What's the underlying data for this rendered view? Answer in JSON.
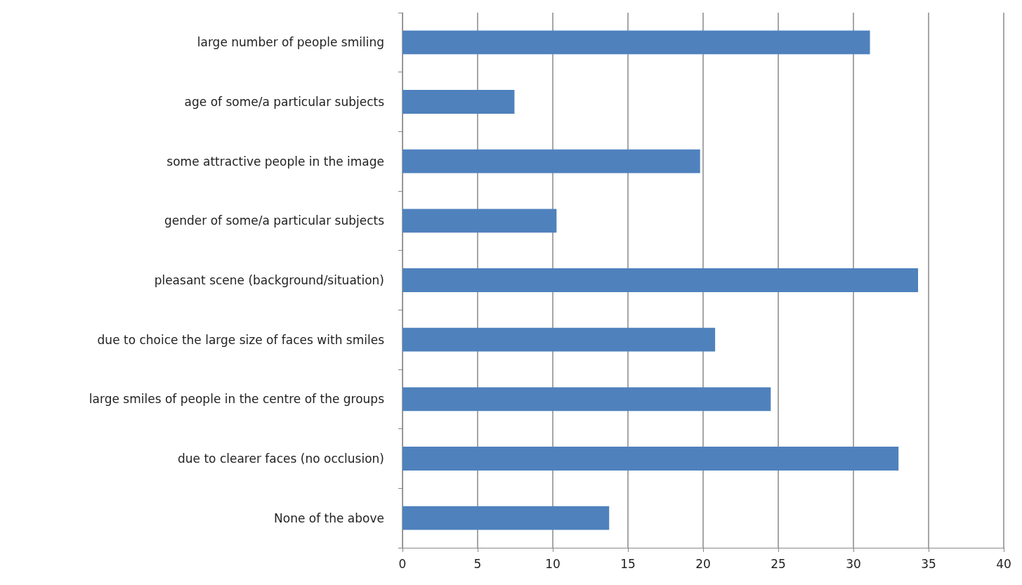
{
  "chart_data": {
    "type": "bar",
    "orientation": "horizontal",
    "categories": [
      "large number of people smiling",
      "age of some/a particular subjects",
      "some attractive people in the image",
      "gender of some/a particular subjects",
      "pleasant scene (background/situation)",
      "due to choice the large size of faces with smiles",
      "large smiles of people in the centre of the groups",
      "due to clearer faces (no occlusion)",
      "None of the above"
    ],
    "values": [
      31.1,
      7.45,
      19.8,
      10.25,
      34.3,
      20.8,
      24.5,
      33.0,
      13.75
    ],
    "color": "#4f81bd",
    "xlim": [
      0,
      40
    ],
    "xticks": [
      0,
      5,
      10,
      15,
      20,
      25,
      30,
      35,
      40
    ],
    "grid": "x"
  }
}
